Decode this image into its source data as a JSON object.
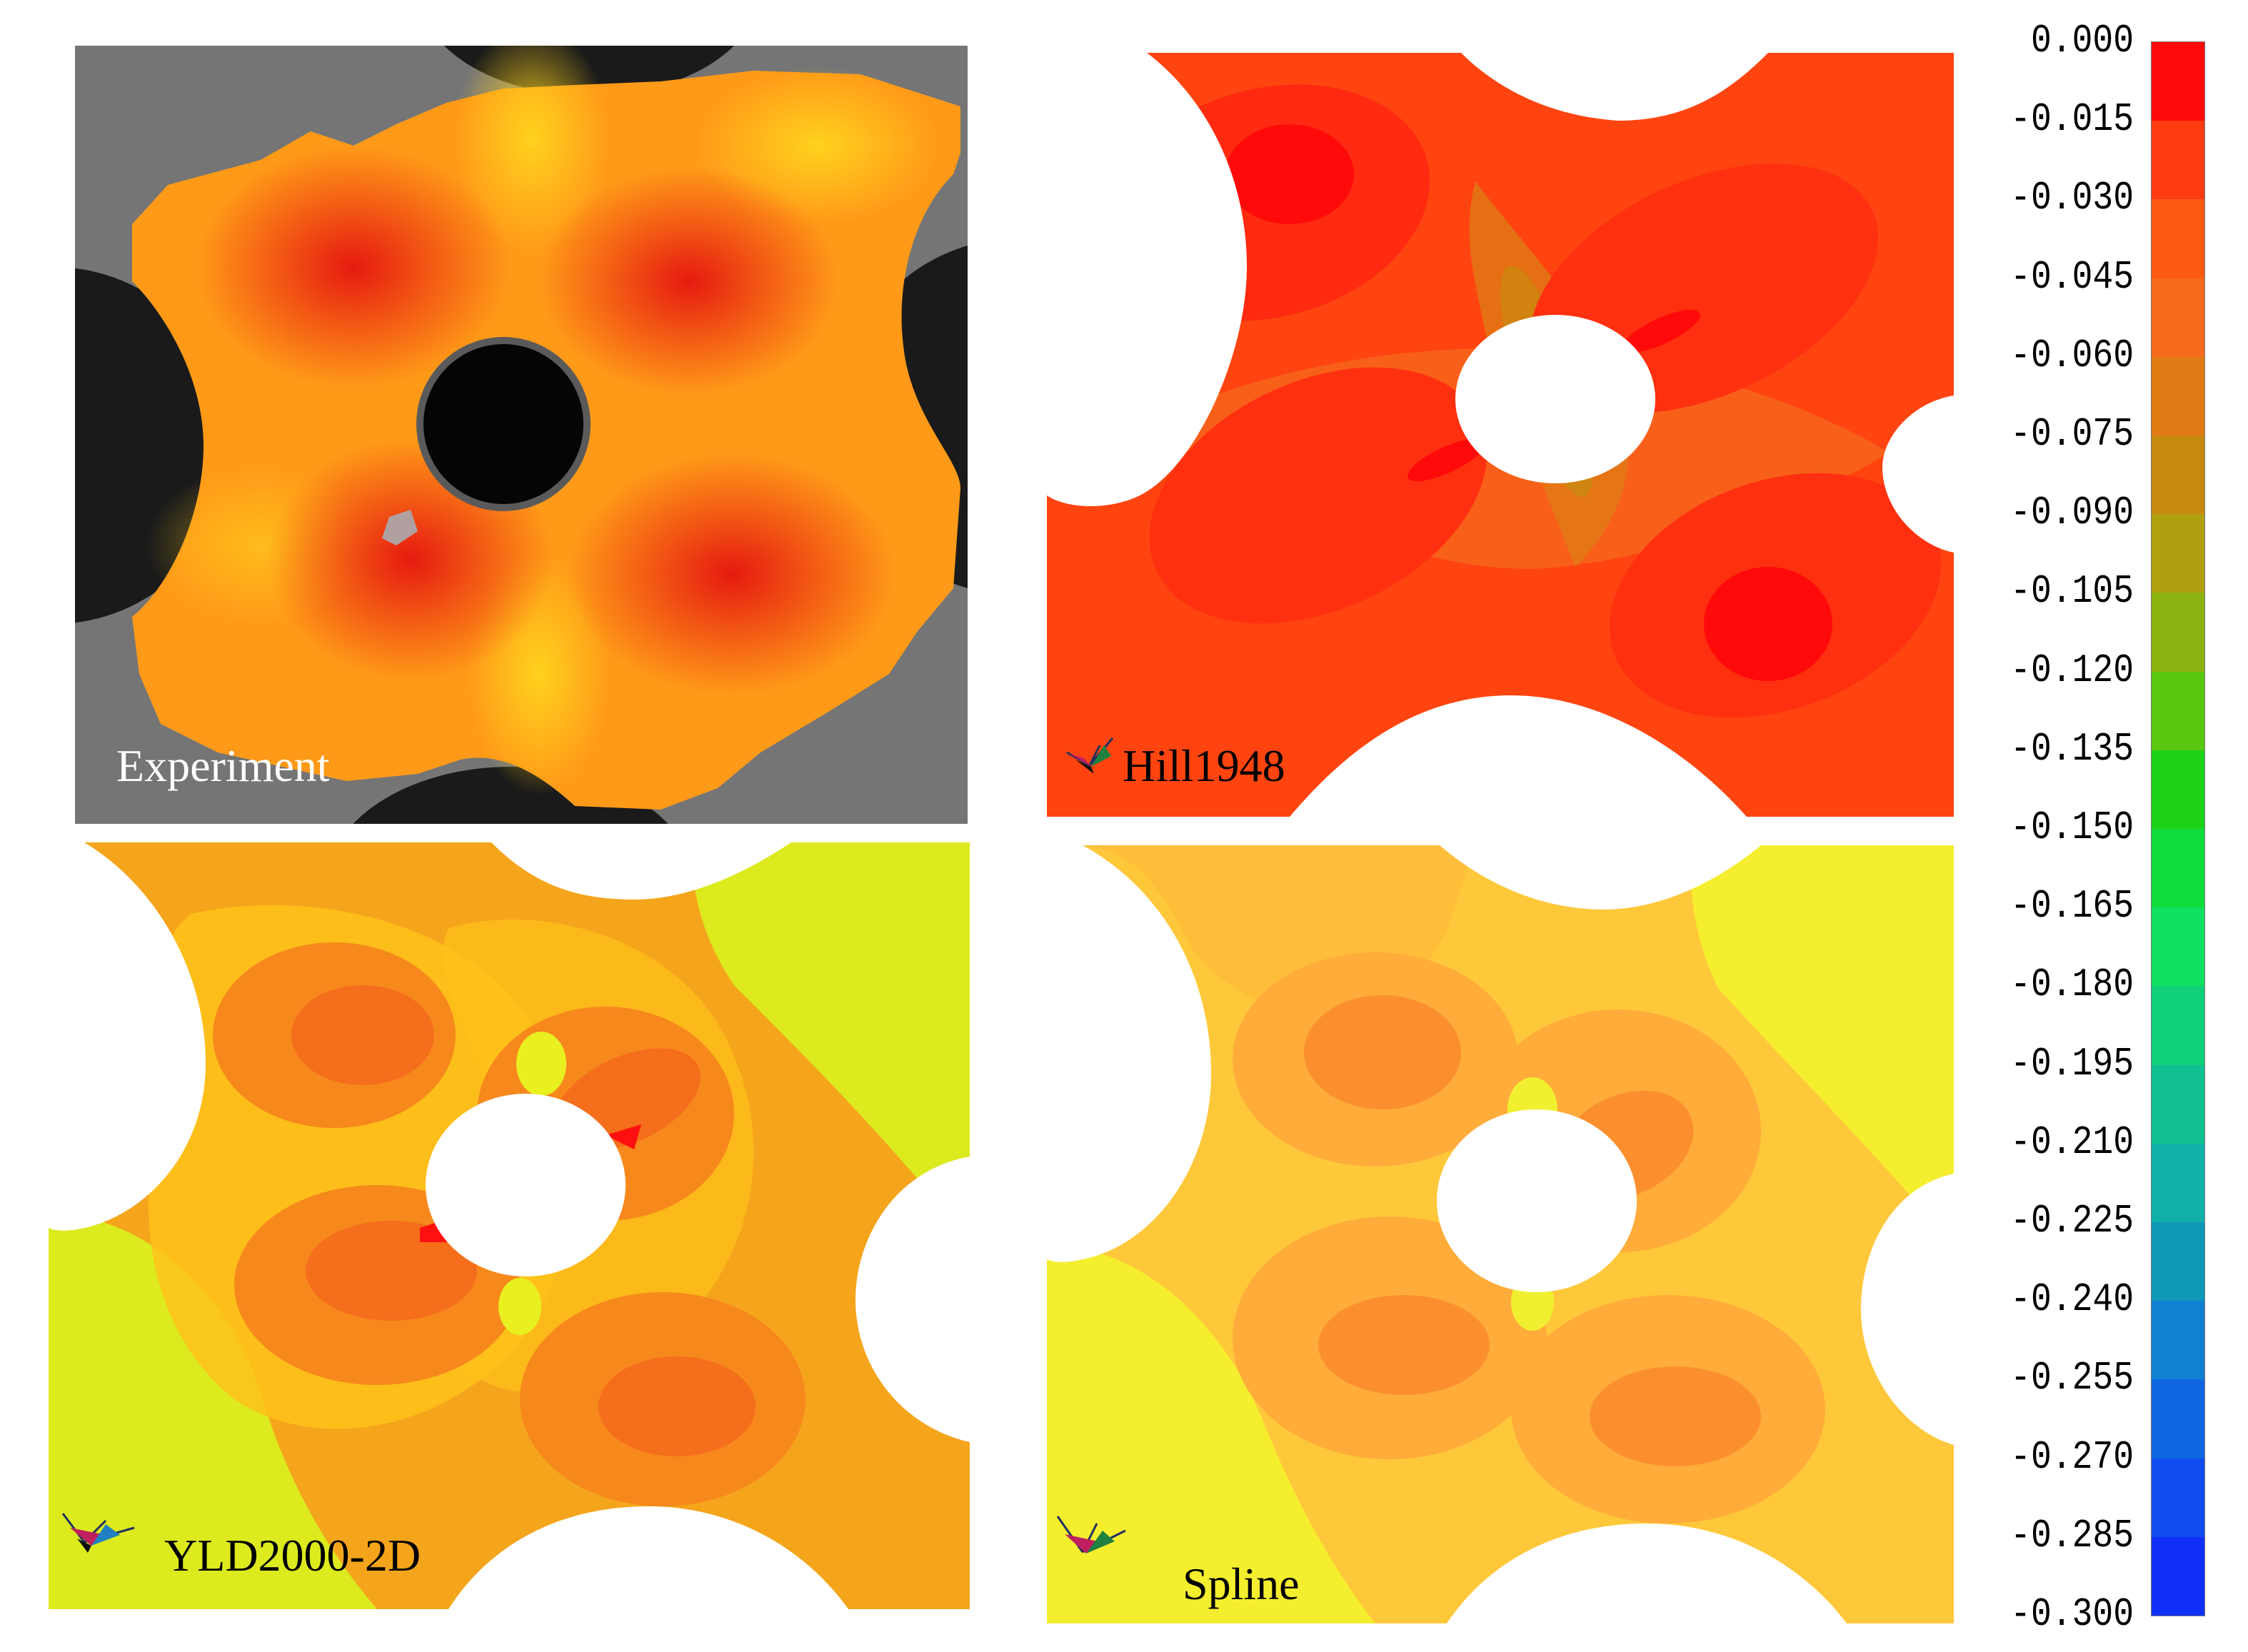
{
  "panels": [
    {
      "label": "Experiment"
    },
    {
      "label": "Hill1948"
    },
    {
      "label": "YLD2000-2D"
    },
    {
      "label": "Spline"
    }
  ],
  "colorbar": {
    "ticks": [
      "0.000",
      "-0.015",
      "-0.030",
      "-0.045",
      "-0.060",
      "-0.075",
      "-0.090",
      "-0.105",
      "-0.120",
      "-0.135",
      "-0.150",
      "-0.165",
      "-0.180",
      "-0.195",
      "-0.210",
      "-0.225",
      "-0.240",
      "-0.255",
      "-0.270",
      "-0.285",
      "-0.300"
    ],
    "colors": [
      "#ff0a0a",
      "#ff3b12",
      "#ff5a14",
      "#f56a1c",
      "#e07a14",
      "#c78a10",
      "#b0a010",
      "#8cb410",
      "#5ac810",
      "#1ed21a",
      "#10dc3c",
      "#10e060",
      "#10d07a",
      "#10c090",
      "#10b0a8",
      "#1098b8",
      "#1080d0",
      "#1066e0",
      "#104cf0",
      "#1030f8"
    ]
  }
}
